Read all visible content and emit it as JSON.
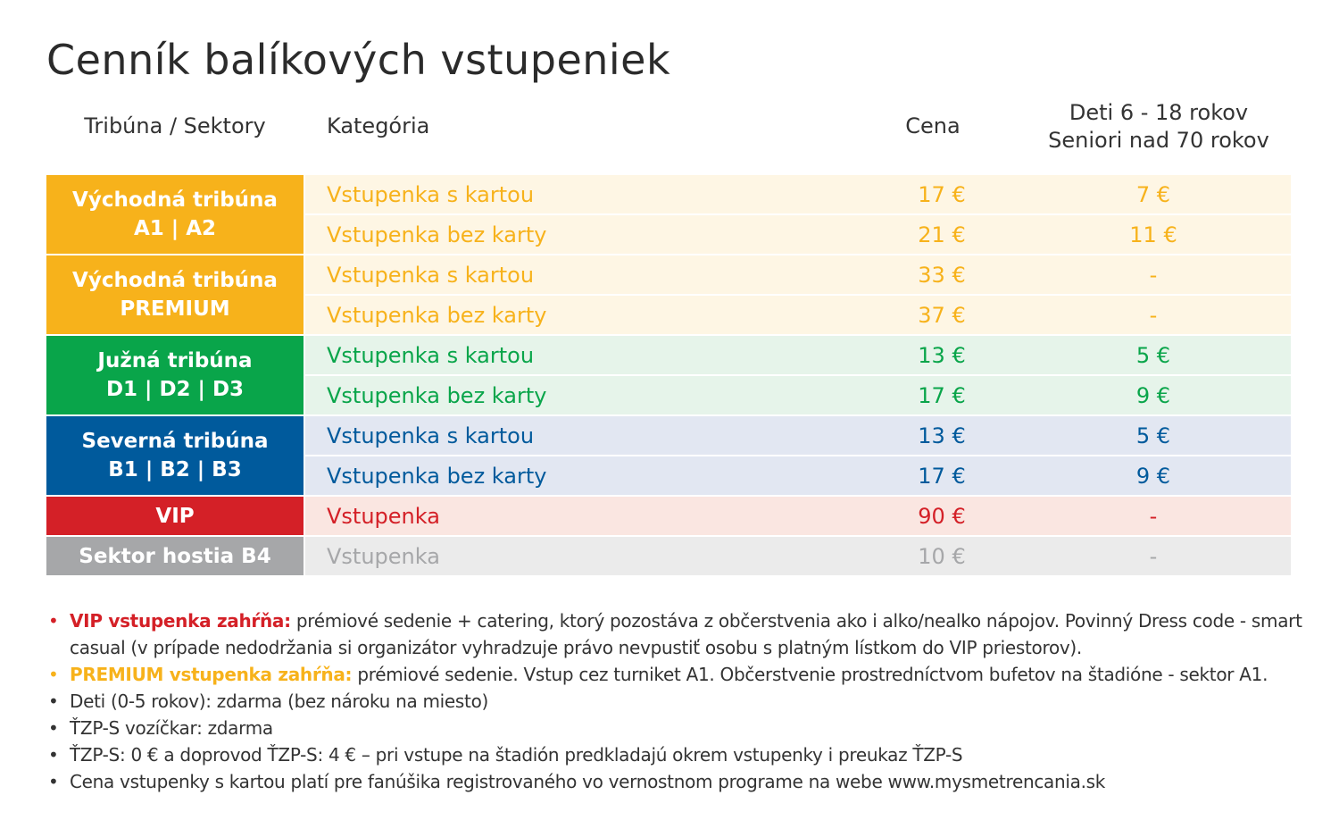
{
  "title": "Cenník balíkových vstupeniek",
  "headers": {
    "tribuna": "Tribúna / Sektory",
    "kategoria": "Kategória",
    "cena": "Cena",
    "deti_line1": "Deti 6 - 18 rokov",
    "deti_line2": "Seniori nad 70 rokov"
  },
  "colors": {
    "orange": "#f7b21b",
    "orange_light": "#fef6e4",
    "green": "#09a54a",
    "green_light": "#e6f4ea",
    "blue": "#005a9c",
    "blue_light": "#e2e7f2",
    "red": "#d42027",
    "red_light": "#fae6e1",
    "gray": "#a6a7a9",
    "gray_light": "#ebebeb"
  },
  "groups": [
    {
      "line1": "Východná tribúna",
      "line2": "A1 | A2",
      "rows": [
        {
          "kategoria": "Vstupenka s kartou",
          "cena": "17 €",
          "deti": "7 €"
        },
        {
          "kategoria": "Vstupenka bez karty",
          "cena": "21 €",
          "deti": "11 €"
        }
      ]
    },
    {
      "line1": "Východná tribúna",
      "line2": "PREMIUM",
      "rows": [
        {
          "kategoria": "Vstupenka s kartou",
          "cena": "33 €",
          "deti": "-"
        },
        {
          "kategoria": "Vstupenka bez karty",
          "cena": "37 €",
          "deti": "-"
        }
      ]
    },
    {
      "line1": "Južná tribúna",
      "line2": "D1 | D2 | D3",
      "rows": [
        {
          "kategoria": "Vstupenka s kartou",
          "cena": "13 €",
          "deti": "5 €"
        },
        {
          "kategoria": "Vstupenka bez karty",
          "cena": "17 €",
          "deti": "9 €"
        }
      ]
    },
    {
      "line1": "Severná tribúna",
      "line2": "B1 | B2 | B3",
      "rows": [
        {
          "kategoria": "Vstupenka s kartou",
          "cena": "13 €",
          "deti": "5 €"
        },
        {
          "kategoria": "Vstupenka bez karty",
          "cena": "17 €",
          "deti": "9 €"
        }
      ]
    },
    {
      "line1": "VIP",
      "rows": [
        {
          "kategoria": "Vstupenka",
          "cena": "90 €",
          "deti": "-"
        }
      ]
    },
    {
      "line1": "Sektor hostia B4",
      "rows": [
        {
          "kategoria": "Vstupenka",
          "cena": "10 €",
          "deti": "-"
        }
      ]
    }
  ],
  "notes": {
    "bullet": "•",
    "vip_label": "VIP vstupenka zahŕňa:",
    "vip_text": " prémiové sedenie + catering, ktorý pozostáva z občerstvenia ako i alko/nealko nápojov. Povinný Dress code - smart casual (v prípade nedodržania si organizátor vyhradzuje právo nevpustiť osobu s platným lístkom do VIP priestorov).",
    "premium_label": "PREMIUM vstupenka zahŕňa:",
    "premium_text": " prémiové sedenie. Vstup cez turniket A1. Občerstvenie prostredníctvom bufetov na štadióne - sektor A1.",
    "deti": "Deti (0-5 rokov): zdarma (bez nároku na miesto)",
    "ztp_vozickar": "ŤZP-S vozíčkar: zdarma",
    "ztp": "ŤZP-S: 0 € a doprovod ŤZP-S: 4 € – pri vstupe na štadión predkladajú okrem vstupenky i preukaz ŤZP-S",
    "cena_kartou": "Cena vstupenky s kartou platí pre fanúšika registrovaného vo vernostnom programe na webe www.mysmetrencania.sk"
  }
}
